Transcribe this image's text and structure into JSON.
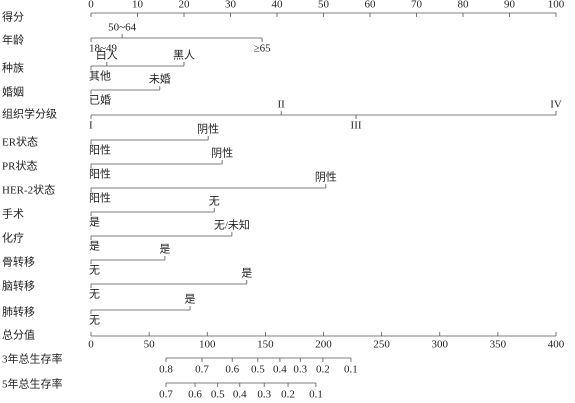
{
  "chart_data": {
    "type": "nomogram",
    "points_axis": {
      "name": "得分",
      "xlim": [
        0,
        100
      ],
      "xticks": [
        0,
        10,
        20,
        30,
        40,
        50,
        60,
        70,
        80,
        90,
        100
      ]
    },
    "variables": [
      {
        "name": "年龄",
        "levels": [
          {
            "label": "18~49",
            "points": 0
          },
          {
            "label": "50~64",
            "points": 6.7
          },
          {
            "label": "≥65",
            "points": 36.8
          }
        ]
      },
      {
        "name": "种族",
        "levels": [
          {
            "label": "其他",
            "points": 0
          },
          {
            "label": "白人",
            "points": 3.4
          },
          {
            "label": "黑人",
            "points": 20
          }
        ]
      },
      {
        "name": "婚姻",
        "levels": [
          {
            "label": "已婚",
            "points": 0
          },
          {
            "label": "未婚",
            "points": 14.8
          }
        ]
      },
      {
        "name": "组织学分级",
        "levels": [
          {
            "label": "I",
            "points": 0
          },
          {
            "label": "II",
            "points": 40.9
          },
          {
            "label": "III",
            "points": 57
          },
          {
            "label": "IV",
            "points": 100
          }
        ]
      },
      {
        "name": "ER状态",
        "levels": [
          {
            "label": "阳性",
            "points": 0
          },
          {
            "label": "阴性",
            "points": 25.2
          }
        ]
      },
      {
        "name": "PR状态",
        "levels": [
          {
            "label": "阳性",
            "points": 0
          },
          {
            "label": "阴性",
            "points": 28.2
          }
        ]
      },
      {
        "name": "HER-2状态",
        "levels": [
          {
            "label": "阳性",
            "points": 0
          },
          {
            "label": "阴性",
            "points": 50.5
          }
        ]
      },
      {
        "name": "手术",
        "levels": [
          {
            "label": "是",
            "points": 0
          },
          {
            "label": "无",
            "points": 26.5
          }
        ]
      },
      {
        "name": "化疗",
        "levels": [
          {
            "label": "是",
            "points": 0
          },
          {
            "label": "无/未知",
            "points": 30.3
          }
        ]
      },
      {
        "name": "骨转移",
        "levels": [
          {
            "label": "无",
            "points": 0
          },
          {
            "label": "是",
            "points": 15.9
          }
        ]
      },
      {
        "name": "脑转移",
        "levels": [
          {
            "label": "无",
            "points": 0
          },
          {
            "label": "是",
            "points": 33.5
          }
        ]
      },
      {
        "name": "肺转移",
        "levels": [
          {
            "label": "无",
            "points": 0
          },
          {
            "label": "是",
            "points": 21.3
          }
        ]
      }
    ],
    "total_axis": {
      "name": "总分值",
      "xlim": [
        0,
        400
      ],
      "xticks": [
        0,
        50,
        100,
        150,
        200,
        250,
        300,
        350,
        400
      ]
    },
    "survival": [
      {
        "name": "3年总生存率",
        "probabilities": [
          0.8,
          0.7,
          0.6,
          0.5,
          0.4,
          0.3,
          0.2,
          0.1
        ],
        "points": [
          64.5,
          95.5,
          121.5,
          143.5,
          162.5,
          180,
          199.5,
          223.6
        ]
      },
      {
        "name": "5年总生存率",
        "probabilities": [
          0.7,
          0.6,
          0.5,
          0.4,
          0.3,
          0.2,
          0.1
        ],
        "points": [
          64.5,
          89.5,
          109,
          128,
          149,
          169.5,
          193.5
        ]
      }
    ]
  }
}
